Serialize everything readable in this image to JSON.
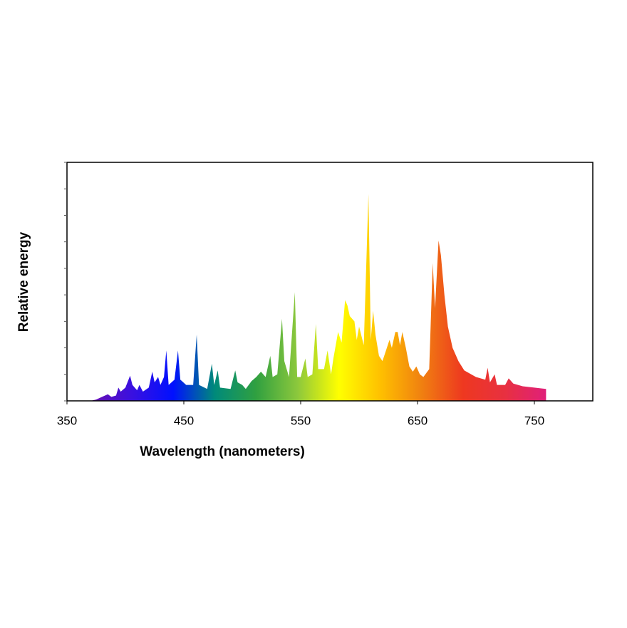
{
  "chart_data": {
    "type": "area",
    "xlabel": "Wavelength (nanometers)",
    "ylabel": "Relative energy",
    "xlim": [
      350,
      800
    ],
    "xticks": [
      350,
      450,
      550,
      650,
      750
    ],
    "ylim": [
      0,
      9
    ],
    "yticks": [
      0,
      1,
      2,
      3,
      4,
      5,
      6,
      7,
      8,
      9
    ],
    "colors": [
      "#6a10b0",
      "#3a10e0",
      "#0010ff",
      "#008a7a",
      "#30a040",
      "#8cc83c",
      "#ffff00",
      "#ffc000",
      "#f08010",
      "#ee3820",
      "#e83040",
      "#e0207a"
    ],
    "x": [
      370,
      375,
      380,
      385,
      388,
      392,
      394,
      396,
      400,
      404,
      406,
      410,
      412,
      415,
      420,
      423,
      425,
      428,
      430,
      433,
      435,
      437,
      442,
      445,
      447,
      452,
      458,
      461,
      463,
      470,
      474,
      476,
      479,
      481,
      490,
      494,
      496,
      500,
      503,
      508,
      512,
      516,
      520,
      524,
      526,
      530,
      534,
      536,
      540,
      545,
      547,
      550,
      554,
      556,
      560,
      563,
      565,
      570,
      573,
      576,
      578,
      582,
      585,
      588,
      590,
      592,
      596,
      598,
      600,
      604,
      608,
      610,
      612,
      614,
      617,
      620,
      623,
      626,
      628,
      631,
      633,
      635,
      637,
      640,
      643,
      646,
      649,
      652,
      655,
      660,
      663,
      665,
      668,
      670,
      673,
      676,
      680,
      685,
      690,
      700,
      708,
      710,
      712,
      716,
      718,
      725,
      728,
      732,
      740,
      750,
      760
    ],
    "values": [
      0,
      0.05,
      0.15,
      0.25,
      0.15,
      0.2,
      0.5,
      0.35,
      0.5,
      0.95,
      0.6,
      0.4,
      0.6,
      0.35,
      0.5,
      1.1,
      0.7,
      0.9,
      0.6,
      0.9,
      1.9,
      0.6,
      0.8,
      1.9,
      0.8,
      0.6,
      0.6,
      2.5,
      0.6,
      0.45,
      1.4,
      0.6,
      1.15,
      0.5,
      0.45,
      1.15,
      0.7,
      0.6,
      0.45,
      0.75,
      0.9,
      1.1,
      0.9,
      1.7,
      0.9,
      1.0,
      3.1,
      1.5,
      0.9,
      4.1,
      0.9,
      0.9,
      1.6,
      0.9,
      1.0,
      2.9,
      1.2,
      1.2,
      1.9,
      1.0,
      1.6,
      2.6,
      2.2,
      3.8,
      3.6,
      3.2,
      3.0,
      2.3,
      2.8,
      2.1,
      7.8,
      2.3,
      3.4,
      2.5,
      1.7,
      1.5,
      1.9,
      2.3,
      2.0,
      2.6,
      2.6,
      2.1,
      2.6,
      2.0,
      1.3,
      1.1,
      1.3,
      1.0,
      0.9,
      1.2,
      5.2,
      3.5,
      6.05,
      5.5,
      4.0,
      2.8,
      2.0,
      1.5,
      1.15,
      0.9,
      0.8,
      1.25,
      0.7,
      1.0,
      0.6,
      0.6,
      0.85,
      0.65,
      0.55,
      0.5,
      0.45
    ]
  }
}
